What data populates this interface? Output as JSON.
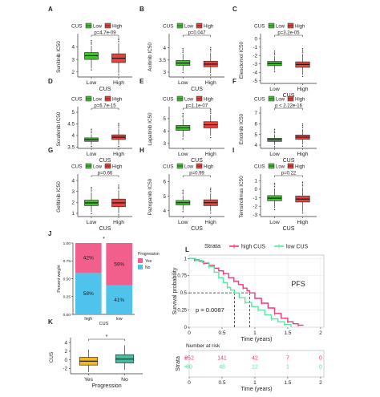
{
  "colors": {
    "low": "#3fc42e",
    "high": "#e8423b",
    "box_line": "#333333",
    "prog_yes": "#f25f8c",
    "prog_no": "#4fc3ec",
    "high_cus": "#f2387a",
    "low_cus": "#58e8a0",
    "k_yes": "#f2b729",
    "k_no": "#3ec0a4",
    "grid": "#e6e6e6"
  },
  "chart_data": [
    {
      "panel": "A",
      "type": "box",
      "ylabel": "Sunitinib IC50",
      "xlabel": "CUS",
      "legend_title": "CUS",
      "legend": [
        "Low",
        "High"
      ],
      "categories": [
        "Low",
        "High"
      ],
      "pvalue": "p=4.7e-09",
      "yticks": [
        2,
        3,
        4
      ],
      "ylim": [
        1.6,
        4.8
      ],
      "boxes": [
        {
          "q1": 3.0,
          "med": 3.3,
          "q3": 3.55,
          "lo": 2.3,
          "hi": 4.1
        },
        {
          "q1": 2.75,
          "med": 3.1,
          "q3": 3.45,
          "lo": 1.9,
          "hi": 4.3
        }
      ]
    },
    {
      "panel": "B",
      "type": "box",
      "ylabel": "Axitinib IC50",
      "xlabel": "CUS",
      "legend_title": "CUS",
      "legend": [
        "Low",
        "High"
      ],
      "categories": [
        "Low",
        "High"
      ],
      "pvalue": "p=0.047",
      "yticks": [
        3.0,
        3.5,
        4.0
      ],
      "ylim": [
        2.8,
        4.45
      ],
      "boxes": [
        {
          "q1": 3.28,
          "med": 3.37,
          "q3": 3.48,
          "lo": 3.05,
          "hi": 3.75
        },
        {
          "q1": 3.22,
          "med": 3.33,
          "q3": 3.45,
          "lo": 2.95,
          "hi": 3.8
        }
      ]
    },
    {
      "panel": "C",
      "type": "box",
      "ylabel": "Elesclomol IC50",
      "xlabel": "CUS",
      "legend_title": "CUS",
      "legend": [
        "Low",
        "High"
      ],
      "categories": [
        "Low",
        "High"
      ],
      "pvalue": "p=3.2e-05",
      "yticks": [
        -5,
        -4,
        -3,
        -2,
        -1,
        0
      ],
      "ylim": [
        -5.3,
        0.2
      ],
      "boxes": [
        {
          "q1": -3.2,
          "med": -2.95,
          "q3": -2.7,
          "lo": -3.7,
          "hi": -2.1
        },
        {
          "q1": -3.4,
          "med": -3.05,
          "q3": -2.75,
          "lo": -4.3,
          "hi": -1.8
        }
      ]
    },
    {
      "panel": "D",
      "type": "box",
      "ylabel": "Sorafenib IC50",
      "xlabel": "CUS",
      "legend_title": "CUS",
      "legend": [
        "Low",
        "High"
      ],
      "categories": [
        "Low",
        "High"
      ],
      "pvalue": "p=6.7e-15",
      "yticks": [
        3.5,
        4.0,
        4.5,
        5.0
      ],
      "ylim": [
        3.45,
        5.1
      ],
      "boxes": [
        {
          "q1": 3.75,
          "med": 3.82,
          "q3": 3.9,
          "lo": 3.6,
          "hi": 4.05
        },
        {
          "q1": 3.83,
          "med": 3.93,
          "q3": 4.03,
          "lo": 3.6,
          "hi": 4.3
        }
      ]
    },
    {
      "panel": "E",
      "type": "box",
      "ylabel": "Lapatinib IC50",
      "xlabel": "CUS",
      "legend_title": "CUS",
      "legend": [
        "Low",
        "High"
      ],
      "categories": [
        "Low",
        "High"
      ],
      "pvalue": "p=1.1e-07",
      "yticks": [
        3,
        4,
        5
      ],
      "ylim": [
        2.6,
        5.7
      ],
      "boxes": [
        {
          "q1": 4.05,
          "med": 4.25,
          "q3": 4.45,
          "lo": 3.5,
          "hi": 5.0
        },
        {
          "q1": 4.25,
          "med": 4.5,
          "q3": 4.75,
          "lo": 3.6,
          "hi": 5.3
        }
      ]
    },
    {
      "panel": "F",
      "type": "box",
      "ylabel": "Erlotinib IC50",
      "xlabel": "CUS",
      "legend_title": "CUS",
      "legend": [
        "Low",
        "High"
      ],
      "categories": [
        "Low",
        "High"
      ],
      "pvalue": "p < 2.22e-16",
      "yticks": [
        4,
        5,
        6,
        7
      ],
      "ylim": [
        3.7,
        7.3
      ],
      "boxes": [
        {
          "q1": 4.35,
          "med": 4.5,
          "q3": 4.65,
          "lo": 4.0,
          "hi": 5.0
        },
        {
          "q1": 4.55,
          "med": 4.75,
          "q3": 4.95,
          "lo": 4.05,
          "hi": 5.5
        }
      ]
    },
    {
      "panel": "G",
      "type": "box",
      "ylabel": "Gefitinib IC50",
      "xlabel": "CUS",
      "legend_title": "CUS",
      "legend": [
        "Low",
        "High"
      ],
      "categories": [
        "Low",
        "High"
      ],
      "pvalue": "p=0.66",
      "yticks": [
        1,
        2,
        3,
        4
      ],
      "ylim": [
        0.7,
        4.3
      ],
      "boxes": [
        {
          "q1": 1.7,
          "med": 1.95,
          "q3": 2.2,
          "lo": 1.1,
          "hi": 2.9
        },
        {
          "q1": 1.6,
          "med": 1.95,
          "q3": 2.3,
          "lo": 1.0,
          "hi": 3.1
        }
      ]
    },
    {
      "panel": "H",
      "type": "box",
      "ylabel": "Pazopanib IC50",
      "xlabel": "CUS",
      "legend_title": "CUS",
      "legend": [
        "Low",
        "High"
      ],
      "categories": [
        "Low",
        "High"
      ],
      "pvalue": "p=0.99",
      "yticks": [
        4,
        5,
        6
      ],
      "ylim": [
        3.6,
        6.3
      ],
      "boxes": [
        {
          "q1": 4.4,
          "med": 4.55,
          "q3": 4.7,
          "lo": 4.05,
          "hi": 5.05
        },
        {
          "q1": 4.35,
          "med": 4.55,
          "q3": 4.75,
          "lo": 3.95,
          "hi": 5.2
        }
      ]
    },
    {
      "panel": "I",
      "type": "box",
      "ylabel": "Temsirolimus IC50",
      "xlabel": "CUS",
      "legend_title": "CUS",
      "legend": [
        "Low",
        "High"
      ],
      "categories": [
        "Low",
        "High"
      ],
      "pvalue": "p=0.22",
      "yticks": [
        -3,
        -2,
        -1,
        0,
        1
      ],
      "ylim": [
        -3.2,
        1.4
      ],
      "boxes": [
        {
          "q1": -1.35,
          "med": -1.05,
          "q3": -0.75,
          "lo": -2.2,
          "hi": 0.1
        },
        {
          "q1": -1.5,
          "med": -1.15,
          "q3": -0.8,
          "lo": -2.6,
          "hi": 0.2
        }
      ]
    },
    {
      "panel": "J",
      "type": "bar",
      "stacked": true,
      "ylabel": "Percent weight",
      "xlabel": "CUS",
      "categories": [
        "high",
        "low"
      ],
      "legend_title": "Progression",
      "legend": [
        "Yes",
        "No"
      ],
      "series": [
        {
          "name": "Yes",
          "values": [
            42,
            59
          ]
        },
        {
          "name": "No",
          "values": [
            58,
            41
          ]
        }
      ],
      "labels": [
        [
          "42%",
          "58%"
        ],
        [
          "59%",
          "41%"
        ]
      ],
      "yticks": [
        "0.00",
        "0.25",
        "0.50",
        "0.75",
        "1.00"
      ],
      "significance": "*"
    },
    {
      "panel": "K",
      "type": "box",
      "ylabel": "CUS",
      "xlabel": "Progression",
      "categories": [
        "Yes",
        "No"
      ],
      "significance": "*",
      "yticks": [
        -2,
        0,
        2,
        4
      ],
      "ylim": [
        -3.2,
        4.4
      ],
      "boxes": [
        {
          "q1": -1.2,
          "med": -0.3,
          "q3": 0.6,
          "lo": -2.8,
          "hi": 2.4
        },
        {
          "q1": -0.7,
          "med": 0.2,
          "q3": 1.2,
          "lo": -2.3,
          "hi": 3.4
        }
      ]
    },
    {
      "panel": "L",
      "type": "line",
      "subtype": "kaplan-meier",
      "ylabel": "Survival probability",
      "xlabel": "Time (years)",
      "legend_title": "Strata",
      "legend": [
        "high CUS",
        "low CUS"
      ],
      "annotation": "PFS",
      "pvalue": "p = 0.0087",
      "xticks": [
        0,
        0.5,
        1,
        1.5,
        2
      ],
      "yticks": [
        0,
        0.25,
        0.5,
        0.75,
        1.0
      ],
      "xlim": [
        0,
        2.05
      ],
      "ylim": [
        0,
        1.05
      ],
      "median_times": [
        0.92,
        0.69
      ],
      "series": [
        {
          "name": "high CUS",
          "x": [
            0,
            0.08,
            0.15,
            0.22,
            0.3,
            0.38,
            0.45,
            0.52,
            0.6,
            0.68,
            0.75,
            0.82,
            0.88,
            0.92,
            1.0,
            1.1,
            1.2,
            1.3,
            1.4,
            1.5,
            1.58,
            1.66,
            1.74
          ],
          "y": [
            1.0,
            0.98,
            0.96,
            0.93,
            0.9,
            0.86,
            0.82,
            0.78,
            0.72,
            0.67,
            0.62,
            0.57,
            0.53,
            0.5,
            0.42,
            0.35,
            0.28,
            0.2,
            0.13,
            0.08,
            0.05,
            0.03,
            0.03
          ]
        },
        {
          "name": "low CUS",
          "x": [
            0,
            0.1,
            0.2,
            0.3,
            0.38,
            0.45,
            0.52,
            0.58,
            0.63,
            0.69,
            0.76,
            0.85,
            0.95,
            1.05,
            1.15,
            1.25,
            1.35,
            1.45,
            1.55
          ],
          "y": [
            1.0,
            0.97,
            0.94,
            0.88,
            0.8,
            0.72,
            0.65,
            0.58,
            0.54,
            0.5,
            0.43,
            0.36,
            0.3,
            0.25,
            0.18,
            0.12,
            0.08,
            0.04,
            0.0
          ]
        }
      ],
      "risk_table": {
        "title": "Number at risk",
        "label": "Strata",
        "times": [
          0,
          0.5,
          1,
          1.5,
          2
        ],
        "rows": [
          {
            "name": "high CUS",
            "values": [
              252,
              141,
              42,
              7,
              0
            ]
          },
          {
            "name": "low CUS",
            "values": [
              80,
              48,
              12,
              1,
              0
            ]
          }
        ]
      }
    }
  ]
}
